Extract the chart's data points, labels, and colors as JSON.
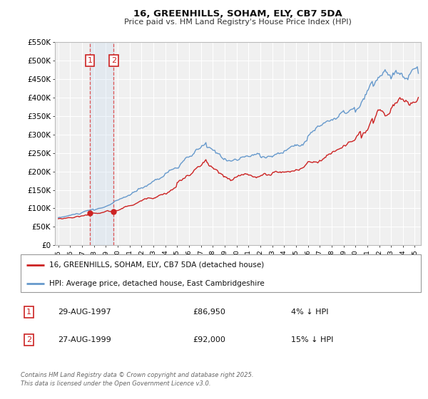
{
  "title": "16, GREENHILLS, SOHAM, ELY, CB7 5DA",
  "subtitle": "Price paid vs. HM Land Registry's House Price Index (HPI)",
  "legend_entries": [
    "16, GREENHILLS, SOHAM, ELY, CB7 5DA (detached house)",
    "HPI: Average price, detached house, East Cambridgeshire"
  ],
  "sale1_date": "29-AUG-1997",
  "sale1_price": "£86,950",
  "sale1_hpi": "4% ↓ HPI",
  "sale1_year": 1997.66,
  "sale1_value": 86950,
  "sale2_date": "27-AUG-1999",
  "sale2_price": "£92,000",
  "sale2_hpi": "15% ↓ HPI",
  "sale2_year": 1999.66,
  "sale2_value": 92000,
  "footer": "Contains HM Land Registry data © Crown copyright and database right 2025.\nThis data is licensed under the Open Government Licence v3.0.",
  "line_color_red": "#cc2222",
  "line_color_blue": "#6699cc",
  "bg_color": "#f0f0f0",
  "grid_color": "#ffffff",
  "ylim": [
    0,
    550000
  ],
  "yticks": [
    0,
    50000,
    100000,
    150000,
    200000,
    250000,
    300000,
    350000,
    400000,
    450000,
    500000,
    550000
  ],
  "ytick_labels": [
    "£0",
    "£50K",
    "£100K",
    "£150K",
    "£200K",
    "£250K",
    "£300K",
    "£350K",
    "£400K",
    "£450K",
    "£500K",
    "£550K"
  ],
  "xlim_start": 1994.7,
  "xlim_end": 2025.5
}
